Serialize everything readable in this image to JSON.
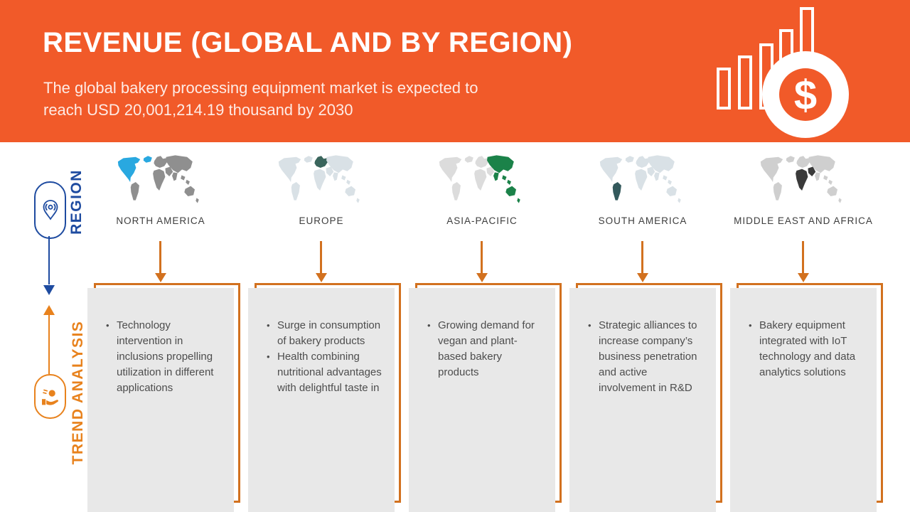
{
  "header": {
    "title": "REVENUE (GLOBAL AND BY REGION)",
    "subtitle_line1": "The global bakery processing equipment market is expected to",
    "subtitle_line2": "reach USD 20,001,214.19 thousand by 2030",
    "icon_symbol": "$"
  },
  "sidebar": {
    "region_label": "REGION",
    "trend_label": "TREND ANALYSIS"
  },
  "icons": {
    "header_icon": "bar-chart-dollar-icon",
    "region_icon": "location-pin-icon",
    "trend_icon": "hand-coin-icon"
  },
  "colors": {
    "header_bg": "#F15A29",
    "accent_orange": "#D2711F",
    "trend_orange": "#E8821D",
    "region_blue": "#1E4BA0",
    "box_bg": "#E8E8E8",
    "bullet_text": "#4D4D4D",
    "label_text": "#3D3D3D"
  },
  "regions": [
    {
      "name": "NORTH AMERICA",
      "map": {
        "base": "#8F8F8F",
        "highlight": "#29A8E0",
        "highlight_areas": [
          "greenland",
          "northAmerica"
        ]
      },
      "bullets": [
        "Technology intervention in inclusions propelling utilization in different applications"
      ]
    },
    {
      "name": "EUROPE",
      "map": {
        "base": "#D9E1E6",
        "highlight": "#3A655C",
        "highlight_areas": [
          "europe"
        ]
      },
      "bullets": [
        "Surge in consumption of bakery products",
        "Health combining nutritional advantages with delightful taste in"
      ]
    },
    {
      "name": "ASIA-PACIFIC",
      "map": {
        "base": "#DCDCDC",
        "highlight": "#1B8249",
        "highlight_areas": [
          "asia",
          "india",
          "seAsia1",
          "seAsia2",
          "australia",
          "newZealand"
        ]
      },
      "bullets": [
        "Growing demand for vegan and plant-based bakery products"
      ]
    },
    {
      "name": "SOUTH AMERICA",
      "map": {
        "base": "#D9E1E6",
        "highlight": "#33595C",
        "highlight_areas": [
          "southAmerica"
        ]
      },
      "bullets": [
        "Strategic alliances to increase company’s business penetration and active involvement in R&D"
      ]
    },
    {
      "name": "MIDDLE EAST AND AFRICA",
      "map": {
        "base": "#CFCFCF",
        "highlight": "#3A3A3A",
        "highlight_areas": [
          "africa",
          "middleEast"
        ]
      },
      "bullets": [
        "Bakery equipment integrated with IoT technology and data analytics solutions"
      ]
    }
  ]
}
